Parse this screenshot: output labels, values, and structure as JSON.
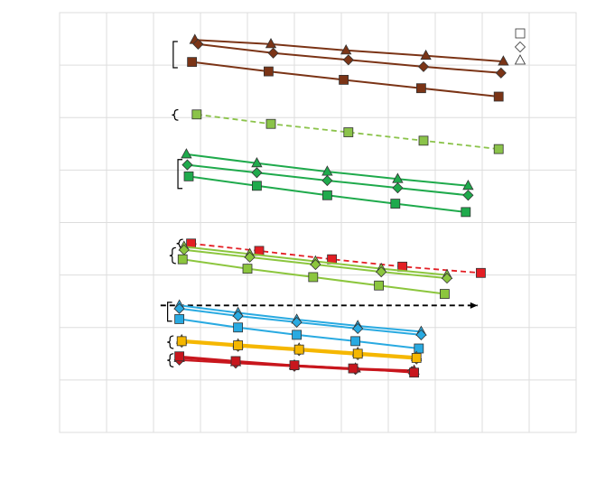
{
  "chart_data": {
    "type": "line",
    "title": "",
    "xlabel": "",
    "ylabel": "",
    "xlim": [
      0,
      11
    ],
    "ylim": [
      0,
      8
    ],
    "grid": true,
    "legend_position": "top-right",
    "legend": [
      {
        "marker": "square",
        "label": ""
      },
      {
        "marker": "diamond",
        "label": ""
      },
      {
        "marker": "triangle",
        "label": ""
      }
    ],
    "colors": {
      "brown": "#7b3416",
      "light_green": "#8bc34a",
      "green": "#1faa4c",
      "red": "#e31e24",
      "lime": "#8cc63e",
      "blue": "#29aae1",
      "yellow": "#f5b700",
      "dark_red": "#c8161d",
      "dark_blue": "#1565c0",
      "black": "#000000",
      "grid": "#dddddd"
    },
    "series": [
      {
        "group": "brown",
        "color": "#7b3416",
        "marker": "triangle",
        "dashed": false,
        "x": [
          2.88,
          4.5,
          6.1,
          7.8,
          9.45
        ],
        "y": [
          7.48,
          7.4,
          7.28,
          7.18,
          7.07
        ]
      },
      {
        "group": "brown",
        "color": "#7b3416",
        "marker": "diamond",
        "dashed": false,
        "x": [
          2.95,
          4.55,
          6.15,
          7.75,
          9.4
        ],
        "y": [
          7.4,
          7.23,
          7.1,
          6.97,
          6.85
        ]
      },
      {
        "group": "brown",
        "color": "#7b3416",
        "marker": "square",
        "dashed": false,
        "x": [
          2.82,
          4.45,
          6.05,
          7.7,
          9.35
        ],
        "y": [
          7.06,
          6.88,
          6.72,
          6.56,
          6.4
        ]
      },
      {
        "group": "light_green",
        "color": "#8bc34a",
        "marker": "square",
        "dashed": true,
        "x": [
          2.92,
          4.5,
          6.15,
          7.75,
          9.35
        ],
        "y": [
          6.06,
          5.88,
          5.72,
          5.56,
          5.4
        ]
      },
      {
        "group": "green",
        "color": "#1faa4c",
        "marker": "triangle",
        "dashed": false,
        "x": [
          2.7,
          4.2,
          5.7,
          7.2,
          8.7
        ],
        "y": [
          5.3,
          5.13,
          4.97,
          4.83,
          4.7
        ]
      },
      {
        "group": "green",
        "color": "#1faa4c",
        "marker": "diamond",
        "dashed": false,
        "x": [
          2.72,
          4.2,
          5.7,
          7.2,
          8.7
        ],
        "y": [
          5.1,
          4.95,
          4.8,
          4.66,
          4.52
        ]
      },
      {
        "group": "green",
        "color": "#1faa4c",
        "marker": "square",
        "dashed": false,
        "x": [
          2.75,
          4.2,
          5.7,
          7.15,
          8.65
        ],
        "y": [
          4.88,
          4.7,
          4.52,
          4.36,
          4.2
        ]
      },
      {
        "group": "red",
        "color": "#e31e24",
        "marker": "square",
        "dashed": true,
        "x": [
          2.8,
          4.25,
          5.8,
          7.3,
          8.97
        ],
        "y": [
          3.6,
          3.46,
          3.3,
          3.16,
          3.04
        ]
      },
      {
        "group": "lime",
        "color": "#8cc63e",
        "marker": "triangle",
        "dashed": false,
        "x": [
          2.65,
          4.05,
          5.45,
          6.85,
          8.25
        ],
        "y": [
          3.54,
          3.4,
          3.26,
          3.12,
          3.0
        ]
      },
      {
        "group": "lime",
        "color": "#8cc63e",
        "marker": "diamond",
        "dashed": false,
        "x": [
          2.65,
          4.05,
          5.45,
          6.85,
          8.25
        ],
        "y": [
          3.48,
          3.34,
          3.2,
          3.06,
          2.94
        ]
      },
      {
        "group": "lime",
        "color": "#8cc63e",
        "marker": "square",
        "dashed": false,
        "x": [
          2.62,
          4.0,
          5.4,
          6.8,
          8.2
        ],
        "y": [
          3.3,
          3.12,
          2.96,
          2.8,
          2.64
        ]
      },
      {
        "group": "black",
        "color": "#000000",
        "marker": "none",
        "dashed": true,
        "x": [
          2.15,
          8.9
        ],
        "y": [
          2.42,
          2.42
        ]
      },
      {
        "group": "blue",
        "color": "#29aae1",
        "marker": "triangle",
        "dashed": false,
        "x": [
          2.55,
          3.8,
          5.05,
          6.35,
          7.7
        ],
        "y": [
          2.42,
          2.28,
          2.15,
          2.03,
          1.92
        ]
      },
      {
        "group": "blue",
        "color": "#29aae1",
        "marker": "diamond",
        "dashed": false,
        "x": [
          2.55,
          3.8,
          5.05,
          6.35,
          7.7
        ],
        "y": [
          2.36,
          2.22,
          2.1,
          1.98,
          1.86
        ]
      },
      {
        "group": "blue",
        "color": "#29aae1",
        "marker": "square",
        "dashed": false,
        "x": [
          2.55,
          3.8,
          5.05,
          6.3,
          7.65
        ],
        "y": [
          2.16,
          2.0,
          1.86,
          1.74,
          1.6
        ]
      },
      {
        "group": "yellow",
        "color": "#f5b700",
        "marker": "triangle",
        "dashed": false,
        "x": [
          2.6,
          3.8,
          5.1,
          6.35,
          7.6
        ],
        "y": [
          1.76,
          1.68,
          1.6,
          1.52,
          1.44
        ]
      },
      {
        "group": "yellow",
        "color": "#f5b700",
        "marker": "diamond",
        "dashed": false,
        "x": [
          2.6,
          3.8,
          5.1,
          6.35,
          7.6
        ],
        "y": [
          1.72,
          1.64,
          1.56,
          1.48,
          1.4
        ]
      },
      {
        "group": "yellow",
        "color": "#f5b700",
        "marker": "square",
        "dashed": false,
        "x": [
          2.6,
          3.8,
          5.1,
          6.35,
          7.6
        ],
        "y": [
          1.74,
          1.66,
          1.58,
          1.5,
          1.42
        ]
      },
      {
        "group": "dark_red",
        "color": "#c8161d",
        "marker": "triangle",
        "dashed": false,
        "x": [
          2.55,
          3.75,
          5.0,
          6.3,
          7.55
        ],
        "y": [
          1.42,
          1.34,
          1.28,
          1.22,
          1.18
        ]
      },
      {
        "group": "dark_red",
        "color": "#c8161d",
        "marker": "diamond",
        "dashed": false,
        "x": [
          2.55,
          3.75,
          5.0,
          6.3,
          7.5
        ],
        "y": [
          1.38,
          1.32,
          1.26,
          1.2,
          1.16
        ]
      },
      {
        "group": "dark_red",
        "color": "#c8161d",
        "marker": "square",
        "dashed": false,
        "x": [
          2.55,
          3.75,
          5.0,
          6.25,
          7.55
        ],
        "y": [
          1.45,
          1.36,
          1.28,
          1.22,
          1.14
        ]
      }
    ],
    "brackets": [
      {
        "type": "square",
        "color": "#000000",
        "x": 2.42,
        "y": [
          7.45,
          6.95
        ]
      },
      {
        "type": "curly",
        "color": "#000000",
        "x": 2.45,
        "y": [
          6.15,
          5.95
        ]
      },
      {
        "type": "square",
        "color": "#000000",
        "x": 2.52,
        "y": [
          5.2,
          4.65
        ]
      },
      {
        "type": "curly",
        "color": "#000000",
        "x": 2.55,
        "y": [
          3.68,
          3.52
        ]
      },
      {
        "type": "curly",
        "color": "#000000",
        "x": 2.4,
        "y": [
          3.52,
          3.22
        ]
      },
      {
        "type": "square",
        "color": "#000000",
        "x": 2.3,
        "y": [
          2.48,
          2.12
        ]
      },
      {
        "type": "curly",
        "color": "#000000",
        "x": 2.35,
        "y": [
          1.84,
          1.6
        ]
      },
      {
        "type": "curly",
        "color": "#000000",
        "x": 2.35,
        "y": [
          1.5,
          1.25
        ]
      }
    ]
  }
}
